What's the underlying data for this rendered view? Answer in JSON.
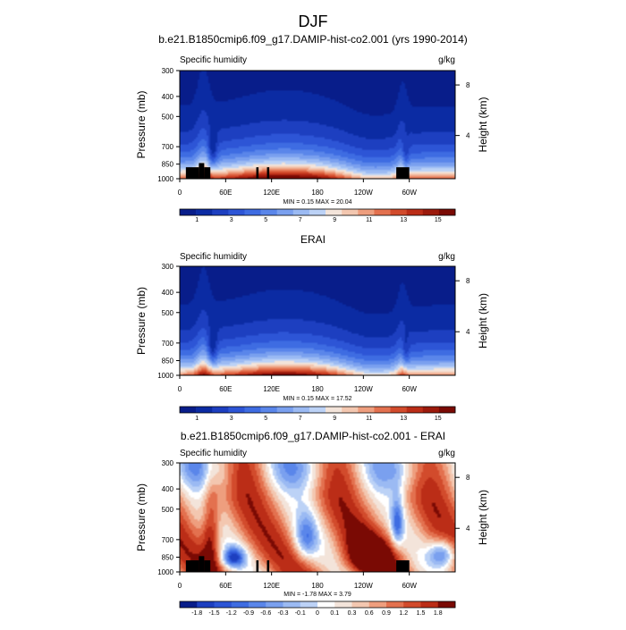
{
  "figure": {
    "title": "DJF"
  },
  "panels": [
    {
      "title": "b.e21.B1850cmip6.f09_g17.DAMIP-hist-co2.001 (yrs 1990-2014)",
      "left_label": "Specific humidity",
      "right_label": "g/kg",
      "stats": "MIN =   0.15  MAX =  20.04",
      "ylabel": "Pressure (mb)",
      "y2label": "Height (km)",
      "yticks": [
        "300",
        "400",
        "500",
        "700",
        "850",
        "1000"
      ],
      "y2ticks": [
        "8",
        "4"
      ],
      "xticks": [
        "0",
        "60E",
        "120E",
        "180",
        "120W",
        "60W"
      ],
      "colorbar": {
        "labels": [
          "1",
          "3",
          "5",
          "7",
          "9",
          "11",
          "13",
          "15"
        ]
      }
    },
    {
      "title": "ERAI",
      "left_label": "Specific humidity",
      "right_label": "g/kg",
      "stats": "MIN =   0.15  MAX =  17.52",
      "ylabel": "Pressure (mb)",
      "y2label": "Height (km)",
      "yticks": [
        "300",
        "400",
        "500",
        "700",
        "850",
        "1000"
      ],
      "y2ticks": [
        "8",
        "4"
      ],
      "xticks": [
        "0",
        "60E",
        "120E",
        "180",
        "120W",
        "60W"
      ],
      "colorbar": {
        "labels": [
          "1",
          "3",
          "5",
          "7",
          "9",
          "11",
          "13",
          "15"
        ]
      }
    },
    {
      "title": "b.e21.B1850cmip6.f09_g17.DAMIP-hist-co2.001 - ERAI",
      "left_label": "Specific humidity",
      "right_label": "g/kg",
      "stats": "MIN =  -1.78  MAX =   3.79",
      "ylabel": "Pressure (mb)",
      "y2label": "Height (km)",
      "yticks": [
        "300",
        "400",
        "500",
        "700",
        "850",
        "1000"
      ],
      "y2ticks": [
        "8",
        "4"
      ],
      "xticks": [
        "0",
        "60E",
        "120E",
        "180",
        "120W",
        "60W"
      ],
      "colorbar": {
        "labels": [
          "-1.8",
          "-1.5",
          "-1.2",
          "-0.9",
          "-0.6",
          "-0.3",
          "-0.1",
          "0",
          "0.1",
          "0.3",
          "0.6",
          "0.9",
          "1.2",
          "1.5",
          "1.8"
        ]
      }
    }
  ],
  "chart_data": [
    {
      "type": "heatmap",
      "title": "b.e21.B1850cmip6.f09_g17.DAMIP-hist-co2.001 (yrs 1990-2014)",
      "xlabel": "",
      "ylabel": "Pressure (mb)",
      "y2label": "Height (km)",
      "xlim": [
        0,
        360
      ],
      "ylim": [
        1000,
        300
      ],
      "y_scale": "log",
      "variable": "Specific humidity",
      "units": "g/kg",
      "min": 0.15,
      "max": 20.04,
      "contour_levels": [
        0,
        1,
        2,
        3,
        4,
        5,
        6,
        7,
        8,
        9,
        10,
        11,
        12,
        13,
        14,
        15,
        16
      ],
      "colors": [
        "#081d8a",
        "#0b2ba3",
        "#1d3fc0",
        "#2d55d6",
        "#3e6ce2",
        "#5a86ea",
        "#7aa0ef",
        "#9bbaf3",
        "#bcd2f6",
        "#f3e4da",
        "#f3c7b0",
        "#ee9e7e",
        "#e3714f",
        "#d24b2c",
        "#bb2d17",
        "#9c1a0c",
        "#7a0a04"
      ],
      "topography": true,
      "description_fields": "contour fill: near-surface humidity 12-16 g/kg in tropics, decreasing to ~1 g/kg at 300 mb"
    },
    {
      "type": "heatmap",
      "title": "ERAI",
      "xlabel": "",
      "ylabel": "Pressure (mb)",
      "y2label": "Height (km)",
      "xlim": [
        0,
        360
      ],
      "ylim": [
        1000,
        300
      ],
      "y_scale": "log",
      "variable": "Specific humidity",
      "units": "g/kg",
      "min": 0.15,
      "max": 17.52,
      "contour_levels": [
        0,
        1,
        2,
        3,
        4,
        5,
        6,
        7,
        8,
        9,
        10,
        11,
        12,
        13,
        14,
        15,
        16
      ],
      "colors": [
        "#081d8a",
        "#0b2ba3",
        "#1d3fc0",
        "#2d55d6",
        "#3e6ce2",
        "#5a86ea",
        "#7aa0ef",
        "#9bbaf3",
        "#bcd2f6",
        "#f3e4da",
        "#f3c7b0",
        "#ee9e7e",
        "#e3714f",
        "#d24b2c",
        "#bb2d17",
        "#9c1a0c",
        "#7a0a04"
      ],
      "topography": false
    },
    {
      "type": "heatmap",
      "title": "b.e21.B1850cmip6.f09_g17.DAMIP-hist-co2.001 - ERAI",
      "xlabel": "",
      "ylabel": "Pressure (mb)",
      "y2label": "Height (km)",
      "xlim": [
        0,
        360
      ],
      "ylim": [
        1000,
        300
      ],
      "y_scale": "log",
      "variable": "Specific humidity",
      "units": "g/kg",
      "min": -1.78,
      "max": 3.79,
      "contour_levels": [
        -1.8,
        -1.5,
        -1.2,
        -0.9,
        -0.6,
        -0.3,
        -0.1,
        0,
        0.1,
        0.3,
        0.6,
        0.9,
        1.2,
        1.5,
        1.8
      ],
      "colors": [
        "#081d8a",
        "#1d3fc0",
        "#2d55d6",
        "#3e6ce2",
        "#5a86ea",
        "#7aa0ef",
        "#9bbaf3",
        "#bcd2f6",
        "#ffffff",
        "#f3e4da",
        "#f3c7b0",
        "#ee9e7e",
        "#e3714f",
        "#d24b2c",
        "#bb2d17",
        "#7a0a04"
      ],
      "topography": true
    }
  ]
}
